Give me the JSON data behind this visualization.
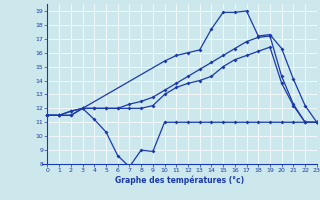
{
  "xlabel": "Graphe des températures (°c)",
  "xlim": [
    -0.5,
    23
  ],
  "ylim": [
    8,
    19.5
  ],
  "yticks": [
    8,
    9,
    10,
    11,
    12,
    13,
    14,
    15,
    16,
    17,
    18,
    19
  ],
  "xticks": [
    0,
    1,
    2,
    3,
    4,
    5,
    6,
    7,
    8,
    9,
    10,
    11,
    12,
    13,
    14,
    15,
    16,
    17,
    18,
    19,
    20,
    21,
    22,
    23
  ],
  "bg_color": "#cce8ec",
  "line_color": "#1a3aab",
  "grid_color": "#ffffff",
  "series1_x": [
    0,
    1,
    2,
    3,
    4,
    5,
    6,
    7,
    8,
    9,
    10,
    11,
    12,
    13,
    14,
    15,
    16,
    17,
    18,
    19,
    20,
    21,
    22,
    23
  ],
  "series1_y": [
    11.5,
    11.5,
    11.5,
    12.0,
    11.2,
    10.3,
    8.6,
    7.8,
    9.0,
    8.9,
    11.0,
    11.0,
    11.0,
    11.0,
    11.0,
    11.0,
    11.0,
    11.0,
    11.0,
    11.0,
    11.0,
    11.0,
    11.0,
    11.0
  ],
  "series2_x": [
    0,
    1,
    2,
    3,
    4,
    5,
    6,
    7,
    8,
    9,
    10,
    11,
    12,
    13,
    14,
    15,
    16,
    17,
    18,
    19,
    20,
    21,
    22,
    23
  ],
  "series2_y": [
    11.5,
    11.5,
    11.5,
    12.0,
    12.0,
    12.0,
    12.0,
    12.0,
    12.0,
    12.2,
    13.0,
    13.5,
    13.8,
    14.0,
    14.3,
    15.0,
    15.5,
    15.8,
    16.1,
    16.4,
    13.8,
    12.2,
    11.0,
    11.0
  ],
  "series3_x": [
    0,
    1,
    2,
    3,
    4,
    5,
    6,
    7,
    8,
    9,
    10,
    11,
    12,
    13,
    14,
    15,
    16,
    17,
    18,
    19,
    20,
    21,
    22,
    23
  ],
  "series3_y": [
    11.5,
    11.5,
    11.8,
    12.0,
    12.0,
    12.0,
    12.0,
    12.3,
    12.5,
    12.8,
    13.3,
    13.8,
    14.3,
    14.8,
    15.3,
    15.8,
    16.3,
    16.8,
    17.1,
    17.2,
    14.3,
    12.3,
    11.0,
    11.0
  ],
  "series4_x": [
    0,
    1,
    2,
    3,
    10,
    11,
    12,
    13,
    14,
    15,
    16,
    17,
    18,
    19,
    20,
    21,
    22,
    23
  ],
  "series4_y": [
    11.5,
    11.5,
    11.8,
    12.0,
    15.4,
    15.8,
    16.0,
    16.2,
    17.7,
    18.9,
    18.9,
    19.0,
    17.2,
    17.3,
    16.3,
    14.1,
    12.2,
    11.0
  ]
}
